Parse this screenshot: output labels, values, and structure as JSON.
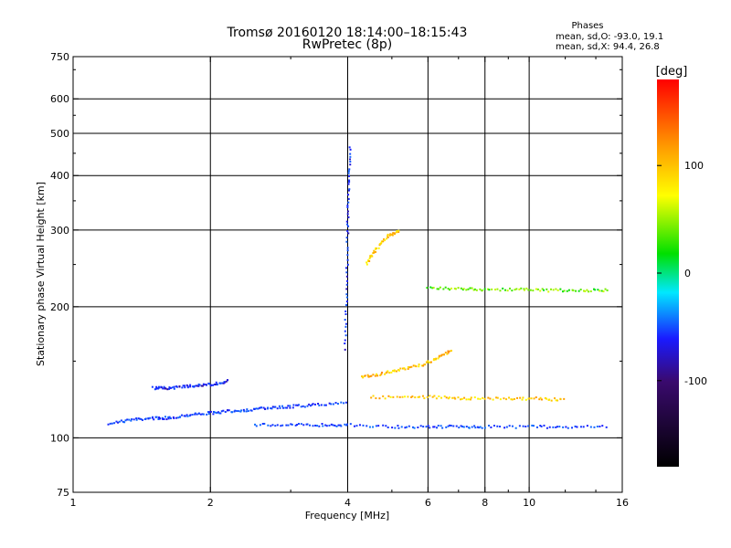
{
  "chart_data": {
    "type": "scatter",
    "title": "Tromsø 20160120 18:14:00–18:15:43",
    "subtitle": "RwPretec (8p)",
    "xlabel": "Frequency [MHz]",
    "ylabel": "Stationary phase Virtual Height [km]",
    "x_scale": "log",
    "y_scale": "log",
    "xlim": [
      1,
      16
    ],
    "ylim": [
      75,
      750
    ],
    "x_ticks": [
      1,
      2,
      4,
      6,
      8,
      10,
      16
    ],
    "x_tick_labels": [
      "1",
      "2",
      "4",
      "6",
      "8",
      "10",
      "16"
    ],
    "x_gridlines": [
      2,
      4,
      6,
      8,
      10
    ],
    "y_ticks": [
      75,
      100,
      200,
      300,
      400,
      500,
      600,
      750
    ],
    "y_tick_labels": [
      "75",
      "100",
      "200",
      "300",
      "400",
      "500",
      "600",
      "750"
    ],
    "y_gridlines": [
      100,
      200,
      300,
      400,
      500,
      600
    ],
    "grid": true,
    "stats": {
      "heading": "Phases",
      "line_o": "mean, sd,O:  -93.0, 19.1",
      "line_x": "mean, sd,X:  94.4, 26.8"
    },
    "colorbar": {
      "label": "[deg]",
      "range": [
        -180,
        180
      ],
      "ticks": [
        100,
        0,
        -100
      ],
      "tick_labels": [
        "100",
        "0",
        "-100"
      ]
    },
    "traces": [
      {
        "x": [
          1.2,
          1.35,
          1.5,
          1.62,
          1.8,
          2.0,
          2.2,
          2.45,
          2.7,
          3.0,
          3.4,
          4.0
        ],
        "y": [
          108,
          110,
          111,
          111,
          113,
          114,
          115,
          116,
          117,
          118,
          119,
          121
        ],
        "phase": -100
      },
      {
        "x": [
          2.5,
          3.0,
          3.5,
          4.0,
          5.0,
          6.0,
          7.0,
          8.0,
          10.0,
          12.0,
          15.0
        ],
        "y": [
          107,
          107,
          107,
          107,
          106,
          106,
          106,
          106,
          106,
          106,
          106
        ],
        "phase": -95
      },
      {
        "x": [
          1.5,
          1.6,
          1.75,
          1.9,
          2.05,
          2.2
        ],
        "y": [
          130,
          130,
          131,
          132,
          133,
          135
        ],
        "phase": -110
      },
      {
        "x": [
          4.5,
          5.5,
          6.5,
          7.5,
          9.0,
          10.5,
          12.0
        ],
        "y": [
          124,
          124,
          124,
          123,
          123,
          123,
          122
        ],
        "phase": 95
      },
      {
        "x": [
          4.3,
          4.7,
          5.2,
          5.8,
          6.3,
          6.8
        ],
        "y": [
          138,
          140,
          143,
          147,
          152,
          160
        ],
        "phase": 100
      },
      {
        "x": [
          6.0,
          7.0,
          8.0,
          9.5,
          11.0,
          13.0,
          15.0
        ],
        "y": [
          221,
          220,
          219,
          219,
          218,
          218,
          218
        ],
        "phase": 40
      },
      {
        "x": [
          3.95,
          3.98,
          4.0,
          4.02,
          4.05
        ],
        "y": [
          160,
          220,
          300,
          380,
          470
        ],
        "phase": -105
      },
      {
        "x": [
          4.4,
          4.6,
          4.9,
          5.2
        ],
        "y": [
          250,
          270,
          290,
          300
        ],
        "phase": 95
      }
    ]
  }
}
